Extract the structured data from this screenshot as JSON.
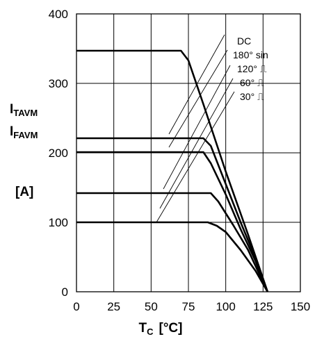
{
  "chart_data": {
    "type": "line",
    "xlim": [
      0,
      150
    ],
    "ylim": [
      0,
      400
    ],
    "x_ticks": [
      "0",
      "25",
      "50",
      "75",
      "100",
      "125",
      "150"
    ],
    "y_ticks": [
      "0",
      "100",
      "200",
      "300",
      "400"
    ],
    "grid": true,
    "ylabel": {
      "line1_main": "I",
      "line1_sub": "TAVM",
      "line2_main": "I",
      "line2_sub": "FAVM",
      "unit": "[A]"
    },
    "xlabel": {
      "main": "T",
      "sub": "C",
      "unit": "[°C]"
    },
    "series": [
      {
        "name": "DC",
        "symbol": "",
        "points": [
          [
            0,
            347
          ],
          [
            70,
            347
          ],
          [
            75,
            333
          ],
          [
            85,
            270
          ],
          [
            100,
            173
          ],
          [
            115,
            82
          ],
          [
            128,
            0
          ]
        ]
      },
      {
        "name": "180° sin",
        "symbol": "",
        "points": [
          [
            0,
            221
          ],
          [
            85,
            221
          ],
          [
            90,
            210
          ],
          [
            100,
            155
          ],
          [
            110,
            100
          ],
          [
            120,
            48
          ],
          [
            128,
            0
          ]
        ]
      },
      {
        "name": "120°",
        "symbol": "⎍",
        "points": [
          [
            0,
            201
          ],
          [
            85,
            201
          ],
          [
            90,
            185
          ],
          [
            100,
            140
          ],
          [
            110,
            90
          ],
          [
            120,
            44
          ],
          [
            128,
            0
          ]
        ]
      },
      {
        "name": "60°",
        "symbol": "⎍",
        "points": [
          [
            0,
            142
          ],
          [
            90,
            142
          ],
          [
            95,
            130
          ],
          [
            105,
            96
          ],
          [
            115,
            60
          ],
          [
            128,
            0
          ]
        ]
      },
      {
        "name": "30°",
        "symbol": "⎍",
        "points": [
          [
            0,
            100
          ],
          [
            88,
            100
          ],
          [
            94,
            95
          ],
          [
            100,
            86
          ],
          [
            110,
            60
          ],
          [
            120,
            30
          ],
          [
            128,
            0
          ]
        ]
      }
    ]
  }
}
